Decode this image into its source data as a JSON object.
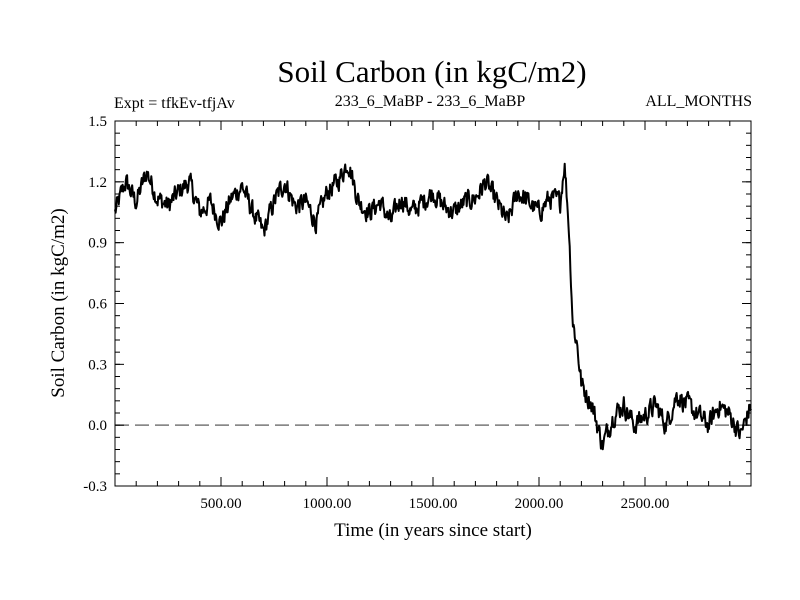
{
  "chart_data": {
    "type": "line",
    "title": "Soil Carbon (in kgC/m2)",
    "subtitle_left": "Expt = tfkEv-tfjAv",
    "subtitle_center": "233_6_MaBP - 233_6_MaBP",
    "subtitle_right": "ALL_MONTHS",
    "xlabel": "Time (in years since start)",
    "ylabel": "Soil Carbon (in kgC/m2)",
    "xlim": [
      0,
      3000
    ],
    "ylim": [
      -0.3,
      1.5
    ],
    "x_ticks": [
      500,
      1000,
      1500,
      2000,
      2500
    ],
    "x_tick_labels": [
      "500.00",
      "1000.00",
      "1500.00",
      "2000.00",
      "2500.00"
    ],
    "y_ticks": [
      -0.3,
      0.0,
      0.3,
      0.6,
      0.9,
      1.2,
      1.5
    ],
    "y_tick_labels": [
      "-0.3",
      "0.0",
      "0.3",
      "0.6",
      "0.9",
      "1.2",
      "1.5"
    ],
    "reference_line": {
      "y": 0.0,
      "style": "dashed",
      "color": "#777777"
    },
    "series": [
      {
        "color": "#000000",
        "x": [
          0,
          50,
          100,
          150,
          200,
          250,
          300,
          350,
          400,
          450,
          500,
          550,
          600,
          650,
          700,
          750,
          800,
          850,
          900,
          950,
          1000,
          1050,
          1100,
          1150,
          1200,
          1250,
          1300,
          1350,
          1400,
          1450,
          1500,
          1550,
          1600,
          1650,
          1700,
          1750,
          1800,
          1850,
          1900,
          1950,
          2000,
          2050,
          2100,
          2120,
          2140,
          2160,
          2180,
          2200,
          2250,
          2300,
          2350,
          2400,
          2450,
          2500,
          2550,
          2600,
          2650,
          2700,
          2750,
          2800,
          2850,
          2900,
          2950,
          3000
        ],
        "values": [
          1.05,
          1.2,
          1.1,
          1.25,
          1.12,
          1.08,
          1.15,
          1.2,
          1.05,
          1.1,
          1.0,
          1.12,
          1.18,
          1.05,
          0.95,
          1.1,
          1.2,
          1.08,
          1.1,
          1.0,
          1.15,
          1.2,
          1.3,
          1.1,
          1.05,
          1.1,
          1.0,
          1.12,
          1.05,
          1.1,
          1.15,
          1.08,
          1.05,
          1.1,
          1.12,
          1.2,
          1.1,
          1.0,
          1.15,
          1.1,
          1.05,
          1.12,
          1.1,
          1.3,
          1.0,
          0.5,
          0.4,
          0.2,
          0.1,
          -0.1,
          0.05,
          0.1,
          0.0,
          0.05,
          0.1,
          0.0,
          0.15,
          0.1,
          0.05,
          0.0,
          0.1,
          0.05,
          -0.05,
          0.1
        ]
      }
    ],
    "noise_amplitude": 0.08
  }
}
